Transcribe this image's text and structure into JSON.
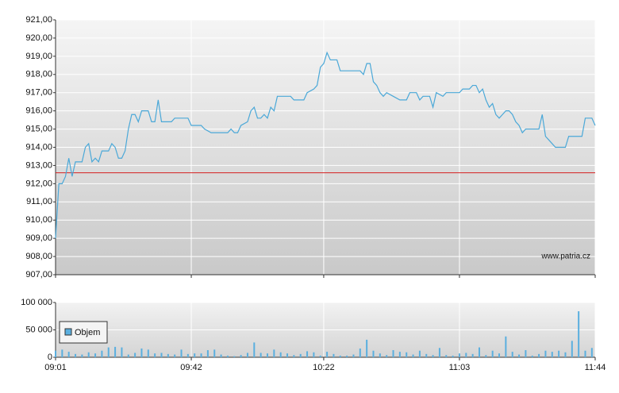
{
  "chart_data": [
    {
      "type": "line",
      "annotation": "www.patria.cz",
      "xlim": [
        "09:01",
        "11:44"
      ],
      "ylim": [
        907,
        921
      ],
      "yticks": [
        {
          "value": 907,
          "label": "907,00"
        },
        {
          "value": 908,
          "label": "908,00"
        },
        {
          "value": 909,
          "label": "909,00"
        },
        {
          "value": 910,
          "label": "910,00"
        },
        {
          "value": 911,
          "label": "911,00"
        },
        {
          "value": 912,
          "label": "912,00"
        },
        {
          "value": 913,
          "label": "913,00"
        },
        {
          "value": 914,
          "label": "914,00"
        },
        {
          "value": 915,
          "label": "915,00"
        },
        {
          "value": 916,
          "label": "916,00"
        },
        {
          "value": 917,
          "label": "917,00"
        },
        {
          "value": 918,
          "label": "918,00"
        },
        {
          "value": 919,
          "label": "919,00"
        },
        {
          "value": 920,
          "label": "920,00"
        },
        {
          "value": 921,
          "label": "921,00"
        }
      ],
      "grid": true,
      "ref_line": {
        "value": 912.6,
        "color": "#d62020"
      },
      "series": [
        {
          "color": "#4aa8d8",
          "x": [
            "09:01",
            "09:02",
            "09:03",
            "09:04",
            "09:05",
            "09:06",
            "09:07",
            "09:09",
            "09:10",
            "09:11",
            "09:12",
            "09:13",
            "09:14",
            "09:15",
            "09:17",
            "09:18",
            "09:19",
            "09:20",
            "09:21",
            "09:22",
            "09:23",
            "09:24",
            "09:25",
            "09:26",
            "09:27",
            "09:29",
            "09:30",
            "09:31",
            "09:32",
            "09:33",
            "09:36",
            "09:37",
            "09:41",
            "09:42",
            "09:45",
            "09:46",
            "09:48",
            "09:53",
            "09:54",
            "09:55",
            "09:56",
            "09:57",
            "09:59",
            "10:00",
            "10:01",
            "10:02",
            "10:03",
            "10:04",
            "10:05",
            "10:06",
            "10:07",
            "10:08",
            "10:12",
            "10:13",
            "10:16",
            "10:17",
            "10:19",
            "10:20",
            "10:21",
            "10:22",
            "10:23",
            "10:24",
            "10:26",
            "10:27",
            "10:33",
            "10:34",
            "10:35",
            "10:36",
            "10:37",
            "10:38",
            "10:39",
            "10:40",
            "10:41",
            "10:43",
            "10:45",
            "10:47",
            "10:48",
            "10:50",
            "10:51",
            "10:52",
            "10:54",
            "10:55",
            "10:56",
            "10:58",
            "10:59",
            "11:03",
            "11:04",
            "11:06",
            "11:07",
            "11:08",
            "11:09",
            "11:10",
            "11:11",
            "11:12",
            "11:13",
            "11:14",
            "11:15",
            "11:16",
            "11:17",
            "11:18",
            "11:19",
            "11:20",
            "11:21",
            "11:22",
            "11:23",
            "11:27",
            "11:28",
            "11:29",
            "11:30",
            "11:31",
            "11:32",
            "11:35",
            "11:36",
            "11:40",
            "11:41",
            "11:43",
            "11:44"
          ],
          "values": [
            909.0,
            912.0,
            912.0,
            912.4,
            913.4,
            912.4,
            913.2,
            913.2,
            914.0,
            914.2,
            913.2,
            913.4,
            913.2,
            913.8,
            913.8,
            914.2,
            914.0,
            913.4,
            913.4,
            913.8,
            915.0,
            915.8,
            915.8,
            915.4,
            916.0,
            916.0,
            915.4,
            915.4,
            916.6,
            915.4,
            915.4,
            915.6,
            915.6,
            915.2,
            915.2,
            915.0,
            914.8,
            914.8,
            915.0,
            914.8,
            914.8,
            915.2,
            915.4,
            916.0,
            916.2,
            915.6,
            915.6,
            915.8,
            915.6,
            916.2,
            916.0,
            916.8,
            916.8,
            916.6,
            916.6,
            917.0,
            917.2,
            917.4,
            918.4,
            918.6,
            919.2,
            918.8,
            918.8,
            918.2,
            918.2,
            918.0,
            918.6,
            918.6,
            917.6,
            917.4,
            917.0,
            916.8,
            917.0,
            916.8,
            916.6,
            916.6,
            917.0,
            917.0,
            916.6,
            916.8,
            916.8,
            916.2,
            917.0,
            916.8,
            917.0,
            917.0,
            917.2,
            917.2,
            917.4,
            917.4,
            917.0,
            917.2,
            916.6,
            916.2,
            916.4,
            915.8,
            915.6,
            915.8,
            916.0,
            916.0,
            915.8,
            915.4,
            915.2,
            914.8,
            915.0,
            915.0,
            915.8,
            914.6,
            914.4,
            914.2,
            914.0,
            914.0,
            914.6,
            914.6,
            915.6,
            915.6,
            915.2
          ]
        }
      ]
    },
    {
      "type": "bar",
      "xlim": [
        "09:01",
        "11:44"
      ],
      "xticks": [
        "09:01",
        "09:42",
        "10:22",
        "11:03",
        "11:44"
      ],
      "ylim": [
        0,
        100000
      ],
      "yticks": [
        0,
        {
          "value": 50000,
          "label": "50 000"
        },
        {
          "value": 100000,
          "label": "100 000"
        }
      ],
      "grid": true,
      "legend": "upper-left",
      "series": [
        {
          "name": "Objem",
          "color": "#5aafdf",
          "x": [
            "09:01",
            "09:03",
            "09:05",
            "09:07",
            "09:09",
            "09:11",
            "09:13",
            "09:15",
            "09:17",
            "09:19",
            "09:21",
            "09:23",
            "09:25",
            "09:27",
            "09:29",
            "09:31",
            "09:33",
            "09:35",
            "09:37",
            "09:39",
            "09:41",
            "09:43",
            "09:45",
            "09:47",
            "09:49",
            "09:51",
            "09:53",
            "09:55",
            "09:57",
            "09:59",
            "10:01",
            "10:03",
            "10:05",
            "10:07",
            "10:09",
            "10:11",
            "10:13",
            "10:15",
            "10:17",
            "10:19",
            "10:21",
            "10:23",
            "10:25",
            "10:27",
            "10:29",
            "10:31",
            "10:33",
            "10:35",
            "10:37",
            "10:39",
            "10:41",
            "10:43",
            "10:45",
            "10:47",
            "10:49",
            "10:51",
            "10:53",
            "10:55",
            "10:57",
            "10:59",
            "11:01",
            "11:03",
            "11:05",
            "11:07",
            "11:09",
            "11:11",
            "11:13",
            "11:15",
            "11:17",
            "11:19",
            "11:21",
            "11:23",
            "11:25",
            "11:27",
            "11:29",
            "11:31",
            "11:33",
            "11:35",
            "11:37",
            "11:39",
            "11:41",
            "11:43"
          ],
          "values": [
            12000,
            14000,
            10000,
            6000,
            5000,
            9000,
            7000,
            12000,
            18000,
            19000,
            18000,
            5000,
            8000,
            16000,
            14000,
            7000,
            8000,
            6000,
            5000,
            14000,
            6000,
            7000,
            7000,
            13000,
            14000,
            5000,
            3000,
            2000,
            4000,
            8000,
            27000,
            8000,
            7000,
            14000,
            9000,
            7000,
            4000,
            6000,
            11000,
            9000,
            3000,
            10000,
            6000,
            3000,
            3000,
            5000,
            16000,
            32000,
            12000,
            7000,
            4000,
            13000,
            10000,
            9000,
            5000,
            12000,
            6000,
            4000,
            17000,
            4000,
            3000,
            7000,
            8000,
            6000,
            18000,
            4000,
            12000,
            7000,
            38000,
            10000,
            5000,
            13000,
            3000,
            6000,
            12000,
            10000,
            12000,
            9000,
            30000,
            84000,
            12000,
            17000
          ]
        }
      ]
    }
  ]
}
